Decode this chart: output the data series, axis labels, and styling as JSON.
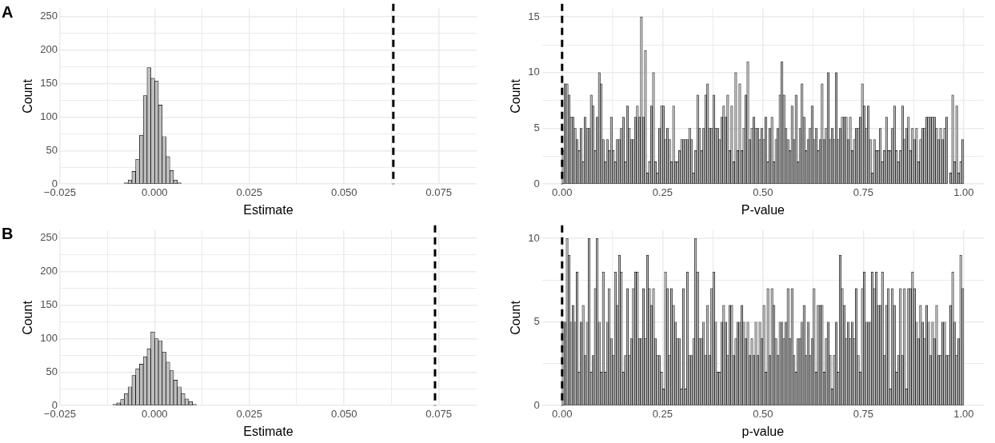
{
  "chart_data": [
    {
      "type": "histogram",
      "xlabel": "Estimate",
      "ylabel": "Count",
      "annotations": [
        "A"
      ],
      "color": "#bebebe",
      "grid": true,
      "bins": [
        -0.02,
        -0.019,
        -0.018,
        -0.017,
        -0.016,
        -0.015,
        -0.014,
        -0.013,
        -0.012,
        -0.011,
        -0.01,
        -0.009,
        -0.008,
        -0.007,
        -0.006,
        -0.005,
        -0.004,
        -0.003,
        -0.002,
        -0.001,
        0,
        0.001,
        0.002,
        0.003,
        0.004,
        0.005,
        0.006,
        0.007,
        0.008,
        0.009,
        0.01,
        0.011,
        0.012,
        0.013,
        0.014,
        0.015,
        0.016,
        0.017,
        0.018,
        0.019,
        0.02,
        0.021,
        0.022,
        0.023,
        0.024,
        0.025,
        0.026,
        0.027,
        0.028,
        0.029,
        0.03,
        0.031,
        0.032,
        0.033,
        0.034,
        0.035,
        0.036,
        0.037,
        0.038,
        0.039,
        0.04,
        0.041,
        0.042,
        0.043,
        0.044,
        0.045,
        0.046,
        0.047,
        0.048,
        0.049,
        0.05,
        0.051,
        0.052,
        0.053,
        0.054,
        0.055,
        0.056,
        0.057,
        0.058,
        0.059,
        0.06,
        0.061,
        0.062,
        0.063,
        0.064,
        0.065,
        0.066,
        0.067,
        0.068,
        0.069,
        0.07,
        0.071,
        0.072,
        0.073,
        0.074,
        0.075,
        0.076,
        0.077,
        0.078,
        0.079,
        0.08
      ],
      "values": [
        0,
        0,
        0,
        0,
        0,
        0,
        0,
        0,
        0,
        0,
        0,
        0,
        2,
        6,
        19,
        37,
        73,
        132,
        174,
        158,
        154,
        118,
        71,
        41,
        20,
        6,
        2,
        0,
        0,
        0,
        0,
        0,
        0,
        0,
        0,
        0,
        0,
        0,
        0,
        0,
        0,
        0,
        0,
        0,
        0,
        0,
        0,
        0,
        0,
        0,
        0,
        0,
        0,
        0,
        0,
        0,
        0,
        0,
        0,
        0,
        0,
        0,
        0,
        0,
        0,
        0,
        0,
        0,
        0,
        0,
        0,
        0,
        0,
        0,
        0,
        0,
        0,
        0,
        0,
        0,
        0,
        0,
        0,
        0,
        0,
        0,
        0,
        0,
        0,
        0,
        0,
        0,
        0,
        0,
        0,
        0,
        0,
        0,
        0,
        0
      ],
      "xlim": [
        -0.025,
        0.085
      ],
      "xticks": [
        {
          "value": -0.025,
          "label": "−0.025"
        },
        {
          "value": -0.0125,
          "label": null
        },
        {
          "value": 0,
          "label": "0.000"
        },
        {
          "value": 0.0125,
          "label": null
        },
        {
          "value": 0.025,
          "label": "0.025"
        },
        {
          "value": 0.0375,
          "label": null
        },
        {
          "value": 0.05,
          "label": "0.050"
        },
        {
          "value": 0.0625,
          "label": null
        },
        {
          "value": 0.075,
          "label": "0.075"
        }
      ],
      "ylim": [
        0,
        262
      ],
      "yticks": [
        0,
        {
          "value": 25,
          "label": null
        },
        50,
        {
          "value": 75,
          "label": null
        },
        100,
        {
          "value": 125,
          "label": null
        },
        150,
        {
          "value": 175,
          "label": null
        },
        200,
        {
          "value": 225,
          "label": null
        },
        250
      ],
      "ref_lines": [
        {
          "axis": "x",
          "value": 0.063,
          "color": "#000000",
          "line_style": "dashed"
        }
      ]
    },
    {
      "type": "histogram",
      "xlabel": "P-value",
      "ylabel": "Count",
      "color": "#bebebe",
      "grid": true,
      "bins": [
        0,
        0.005,
        0.01,
        0.015,
        0.02,
        0.025,
        0.03,
        0.035,
        0.04,
        0.045,
        0.05,
        0.055,
        0.06,
        0.065,
        0.07,
        0.075,
        0.08,
        0.085,
        0.09,
        0.095,
        0.1,
        0.105,
        0.11,
        0.115,
        0.12,
        0.125,
        0.13,
        0.135,
        0.14,
        0.145,
        0.15,
        0.155,
        0.16,
        0.165,
        0.17,
        0.175,
        0.18,
        0.185,
        0.19,
        0.195,
        0.2,
        0.205,
        0.21,
        0.215,
        0.22,
        0.225,
        0.23,
        0.235,
        0.24,
        0.245,
        0.25,
        0.255,
        0.26,
        0.265,
        0.27,
        0.275,
        0.28,
        0.285,
        0.29,
        0.295,
        0.3,
        0.305,
        0.31,
        0.315,
        0.32,
        0.325,
        0.33,
        0.335,
        0.34,
        0.345,
        0.35,
        0.355,
        0.36,
        0.365,
        0.37,
        0.375,
        0.38,
        0.385,
        0.39,
        0.395,
        0.4,
        0.405,
        0.41,
        0.415,
        0.42,
        0.425,
        0.43,
        0.435,
        0.44,
        0.445,
        0.45,
        0.455,
        0.46,
        0.465,
        0.47,
        0.475,
        0.48,
        0.485,
        0.49,
        0.495,
        0.5,
        0.505,
        0.51,
        0.515,
        0.52,
        0.525,
        0.53,
        0.535,
        0.54,
        0.545,
        0.55,
        0.555,
        0.56,
        0.565,
        0.57,
        0.575,
        0.58,
        0.585,
        0.59,
        0.595,
        0.6,
        0.605,
        0.61,
        0.615,
        0.62,
        0.625,
        0.63,
        0.635,
        0.64,
        0.645,
        0.65,
        0.655,
        0.66,
        0.665,
        0.67,
        0.675,
        0.68,
        0.685,
        0.69,
        0.695,
        0.7,
        0.705,
        0.71,
        0.715,
        0.72,
        0.725,
        0.73,
        0.735,
        0.74,
        0.745,
        0.75,
        0.755,
        0.76,
        0.765,
        0.77,
        0.775,
        0.78,
        0.785,
        0.79,
        0.795,
        0.8,
        0.805,
        0.81,
        0.815,
        0.82,
        0.825,
        0.83,
        0.835,
        0.84,
        0.845,
        0.85,
        0.855,
        0.86,
        0.865,
        0.87,
        0.875,
        0.88,
        0.885,
        0.89,
        0.895,
        0.9,
        0.905,
        0.91,
        0.915,
        0.92,
        0.925,
        0.93,
        0.935,
        0.94,
        0.945,
        0.95,
        0.955,
        0.96,
        0.965,
        0.97,
        0.975,
        0.98,
        0.985,
        0.99,
        0.995,
        1
      ],
      "values": [
        3,
        9,
        9,
        8,
        6,
        6,
        5,
        4,
        3,
        5,
        2,
        6,
        5,
        5,
        8,
        7,
        3,
        6,
        10,
        9,
        4,
        2,
        4,
        3,
        6,
        3,
        2,
        4,
        4,
        5,
        6,
        2,
        7,
        5,
        4,
        4,
        6,
        7,
        6,
        15,
        6,
        12,
        1,
        2,
        7,
        10,
        2,
        1,
        5,
        7,
        7,
        4,
        5,
        4,
        2,
        7,
        2,
        2,
        3,
        4,
        4,
        4,
        4,
        5,
        4,
        1,
        3,
        8,
        5,
        3,
        5,
        8,
        9,
        5,
        5,
        8,
        5,
        5,
        4,
        6,
        7,
        6,
        8,
        3,
        7,
        2,
        10,
        3,
        9,
        3,
        5,
        8,
        11,
        4,
        5,
        6,
        5,
        5,
        4,
        5,
        4,
        6,
        2,
        5,
        6,
        2,
        4,
        5,
        8,
        11,
        8,
        5,
        4,
        3,
        7,
        4,
        8,
        2,
        5,
        9,
        6,
        3,
        4,
        5,
        7,
        4,
        5,
        3,
        4,
        9,
        4,
        5,
        10,
        4,
        5,
        4,
        10,
        4,
        5,
        6,
        6,
        6,
        4,
        6,
        3,
        4,
        5,
        5,
        6,
        9,
        7,
        5,
        7,
        4,
        1,
        4,
        3,
        3,
        5,
        2,
        3,
        6,
        3,
        3,
        5,
        7,
        3,
        2,
        3,
        7,
        4,
        5,
        6,
        3,
        5,
        4,
        5,
        2,
        4,
        5,
        5,
        6,
        6,
        6,
        6,
        6,
        5,
        4,
        5,
        4,
        5,
        6,
        0,
        1,
        8,
        2,
        7,
        1,
        2,
        4
      ],
      "xlim": [
        -0.05,
        1.05
      ],
      "xticks": [
        {
          "value": 0,
          "label": "0.00"
        },
        {
          "value": 0.125,
          "label": null
        },
        {
          "value": 0.25,
          "label": "0.25"
        },
        {
          "value": 0.375,
          "label": null
        },
        {
          "value": 0.5,
          "label": "0.50"
        },
        {
          "value": 0.625,
          "label": null
        },
        {
          "value": 0.75,
          "label": "0.75"
        },
        {
          "value": 0.875,
          "label": null
        },
        {
          "value": 1,
          "label": "1.00"
        }
      ],
      "ylim": [
        0,
        15.75
      ],
      "yticks": [
        0,
        {
          "value": 2.5,
          "label": null
        },
        5,
        {
          "value": 7.5,
          "label": null
        },
        10,
        {
          "value": 12.5,
          "label": null
        },
        15
      ],
      "ref_lines": [
        {
          "axis": "x",
          "value": 0,
          "color": "#000000",
          "line_style": "dashed"
        }
      ]
    },
    {
      "type": "histogram",
      "xlabel": "Estimate",
      "ylabel": "Count",
      "annotations": [
        "B"
      ],
      "color": "#bebebe",
      "grid": true,
      "bins": [
        -0.02,
        -0.019,
        -0.018,
        -0.017,
        -0.016,
        -0.015,
        -0.014,
        -0.013,
        -0.012,
        -0.011,
        -0.01,
        -0.009,
        -0.008,
        -0.007,
        -0.006,
        -0.005,
        -0.004,
        -0.003,
        -0.002,
        -0.001,
        0,
        0.001,
        0.002,
        0.003,
        0.004,
        0.005,
        0.006,
        0.007,
        0.008,
        0.009,
        0.01,
        0.011,
        0.012,
        0.013,
        0.014,
        0.015,
        0.016,
        0.017,
        0.018,
        0.019,
        0.02,
        0.021,
        0.022,
        0.023,
        0.024,
        0.025,
        0.026,
        0.027,
        0.028,
        0.029,
        0.03,
        0.031,
        0.032,
        0.033,
        0.034,
        0.035,
        0.036,
        0.037,
        0.038,
        0.039,
        0.04,
        0.041,
        0.042,
        0.043,
        0.044,
        0.045,
        0.046,
        0.047,
        0.048,
        0.049,
        0.05,
        0.051,
        0.052,
        0.053,
        0.054,
        0.055,
        0.056,
        0.057,
        0.058,
        0.059,
        0.06,
        0.061,
        0.062,
        0.063,
        0.064,
        0.065,
        0.066,
        0.067,
        0.068,
        0.069,
        0.07,
        0.071,
        0.072,
        0.073,
        0.074,
        0.075,
        0.076,
        0.077,
        0.078,
        0.079,
        0.08
      ],
      "values": [
        0,
        0,
        0,
        0,
        0,
        0,
        0,
        0,
        0,
        2,
        4,
        9,
        18,
        28,
        45,
        55,
        62,
        73,
        85,
        110,
        100,
        97,
        80,
        65,
        52,
        38,
        28,
        18,
        10,
        6,
        2,
        0,
        0,
        0,
        0,
        0,
        0,
        0,
        0,
        0,
        0,
        0,
        0,
        0,
        0,
        0,
        0,
        0,
        0,
        0,
        0,
        0,
        0,
        0,
        0,
        0,
        0,
        0,
        0,
        0,
        0,
        0,
        0,
        0,
        0,
        0,
        0,
        0,
        0,
        0,
        0,
        0,
        0,
        0,
        0,
        0,
        0,
        0,
        0,
        0,
        0,
        0,
        0,
        0,
        0,
        0,
        0,
        0,
        0,
        0,
        0,
        0,
        0,
        0,
        0,
        0,
        0,
        0,
        0,
        0
      ],
      "xlim": [
        -0.025,
        0.085
      ],
      "xticks": [
        {
          "value": -0.025,
          "label": "−0.025"
        },
        {
          "value": -0.0125,
          "label": null
        },
        {
          "value": 0,
          "label": "0.000"
        },
        {
          "value": 0.0125,
          "label": null
        },
        {
          "value": 0.025,
          "label": "0.025"
        },
        {
          "value": 0.0375,
          "label": null
        },
        {
          "value": 0.05,
          "label": "0.050"
        },
        {
          "value": 0.0625,
          "label": null
        },
        {
          "value": 0.075,
          "label": "0.075"
        }
      ],
      "ylim": [
        0,
        262
      ],
      "yticks": [
        0,
        {
          "value": 25,
          "label": null
        },
        50,
        {
          "value": 75,
          "label": null
        },
        100,
        {
          "value": 125,
          "label": null
        },
        150,
        {
          "value": 175,
          "label": null
        },
        200,
        {
          "value": 225,
          "label": null
        },
        250
      ],
      "ref_lines": [
        {
          "axis": "x",
          "value": 0.074,
          "color": "#000000",
          "line_style": "dashed"
        }
      ]
    },
    {
      "type": "histogram",
      "xlabel": "p-value",
      "ylabel": "Count",
      "color": "#bebebe",
      "grid": true,
      "bins": [
        0,
        0.005,
        0.01,
        0.015,
        0.02,
        0.025,
        0.03,
        0.035,
        0.04,
        0.045,
        0.05,
        0.055,
        0.06,
        0.065,
        0.07,
        0.075,
        0.08,
        0.085,
        0.09,
        0.095,
        0.1,
        0.105,
        0.11,
        0.115,
        0.12,
        0.125,
        0.13,
        0.135,
        0.14,
        0.145,
        0.15,
        0.155,
        0.16,
        0.165,
        0.17,
        0.175,
        0.18,
        0.185,
        0.19,
        0.195,
        0.2,
        0.205,
        0.21,
        0.215,
        0.22,
        0.225,
        0.23,
        0.235,
        0.24,
        0.245,
        0.25,
        0.255,
        0.26,
        0.265,
        0.27,
        0.275,
        0.28,
        0.285,
        0.29,
        0.295,
        0.3,
        0.305,
        0.31,
        0.315,
        0.32,
        0.325,
        0.33,
        0.335,
        0.34,
        0.345,
        0.35,
        0.355,
        0.36,
        0.365,
        0.37,
        0.375,
        0.38,
        0.385,
        0.39,
        0.395,
        0.4,
        0.405,
        0.41,
        0.415,
        0.42,
        0.425,
        0.43,
        0.435,
        0.44,
        0.445,
        0.45,
        0.455,
        0.46,
        0.465,
        0.47,
        0.475,
        0.48,
        0.485,
        0.49,
        0.495,
        0.5,
        0.505,
        0.51,
        0.515,
        0.52,
        0.525,
        0.53,
        0.535,
        0.54,
        0.545,
        0.55,
        0.555,
        0.56,
        0.565,
        0.57,
        0.575,
        0.58,
        0.585,
        0.59,
        0.595,
        0.6,
        0.605,
        0.61,
        0.615,
        0.62,
        0.625,
        0.63,
        0.635,
        0.64,
        0.645,
        0.65,
        0.655,
        0.66,
        0.665,
        0.67,
        0.675,
        0.68,
        0.685,
        0.69,
        0.695,
        0.7,
        0.705,
        0.71,
        0.715,
        0.72,
        0.725,
        0.73,
        0.735,
        0.74,
        0.745,
        0.75,
        0.755,
        0.76,
        0.765,
        0.77,
        0.775,
        0.78,
        0.785,
        0.79,
        0.795,
        0.8,
        0.805,
        0.81,
        0.815,
        0.82,
        0.825,
        0.83,
        0.835,
        0.84,
        0.845,
        0.85,
        0.855,
        0.86,
        0.865,
        0.87,
        0.875,
        0.88,
        0.885,
        0.89,
        0.895,
        0.9,
        0.905,
        0.91,
        0.915,
        0.92,
        0.925,
        0.93,
        0.935,
        0.94,
        0.945,
        0.95,
        0.955,
        0.96,
        0.965,
        0.97,
        0.975,
        0.98,
        0.985,
        0.99,
        0.995,
        1
      ],
      "values": [
        5,
        5,
        10,
        9,
        5,
        6,
        5,
        8,
        2,
        5,
        6,
        3,
        5,
        10,
        2,
        3,
        7,
        10,
        5,
        2,
        8,
        2,
        5,
        7,
        4,
        3,
        8,
        6,
        9,
        8,
        2,
        3,
        7,
        3,
        4,
        7,
        8,
        8,
        4,
        4,
        7,
        4,
        9,
        7,
        6,
        7,
        4,
        3,
        3,
        2,
        1,
        8,
        7,
        3,
        7,
        6,
        5,
        4,
        4,
        1,
        7,
        1,
        8,
        3,
        3,
        4,
        10,
        8,
        4,
        4,
        5,
        3,
        6,
        3,
        7,
        8,
        5,
        2,
        2,
        5,
        6,
        5,
        3,
        6,
        6,
        3,
        4,
        5,
        5,
        6,
        5,
        4,
        5,
        3,
        4,
        3,
        5,
        3,
        5,
        4,
        6,
        2,
        7,
        3,
        7,
        6,
        4,
        3,
        5,
        5,
        4,
        5,
        7,
        4,
        7,
        3,
        2,
        4,
        4,
        5,
        6,
        3,
        5,
        3,
        4,
        7,
        2,
        6,
        6,
        6,
        2,
        4,
        5,
        3,
        1,
        3,
        5,
        2,
        9,
        7,
        6,
        4,
        5,
        4,
        5,
        4,
        7,
        3,
        2,
        7,
        8,
        5,
        5,
        5,
        8,
        7,
        8,
        6,
        6,
        8,
        3,
        6,
        7,
        1,
        7,
        6,
        2,
        3,
        7,
        3,
        7,
        1,
        7,
        7,
        8,
        7,
        5,
        4,
        6,
        5,
        4,
        6,
        5,
        3,
        5,
        4,
        6,
        3,
        3,
        5,
        5,
        3,
        3,
        6,
        8,
        5,
        3,
        4,
        9,
        7
      ],
      "xlim": [
        -0.05,
        1.05
      ],
      "xticks": [
        {
          "value": 0,
          "label": "0.00"
        },
        {
          "value": 0.125,
          "label": null
        },
        {
          "value": 0.25,
          "label": "0.25"
        },
        {
          "value": 0.375,
          "label": null
        },
        {
          "value": 0.5,
          "label": "0.50"
        },
        {
          "value": 0.625,
          "label": null
        },
        {
          "value": 0.75,
          "label": "0.75"
        },
        {
          "value": 0.875,
          "label": null
        },
        {
          "value": 1,
          "label": "1.00"
        }
      ],
      "ylim": [
        0,
        10.5
      ],
      "yticks": [
        0,
        {
          "value": 2.5,
          "label": null
        },
        5,
        {
          "value": 7.5,
          "label": null
        },
        10
      ],
      "ref_lines": [
        {
          "axis": "x",
          "value": 0,
          "color": "#000000",
          "line_style": "dashed"
        }
      ]
    }
  ]
}
